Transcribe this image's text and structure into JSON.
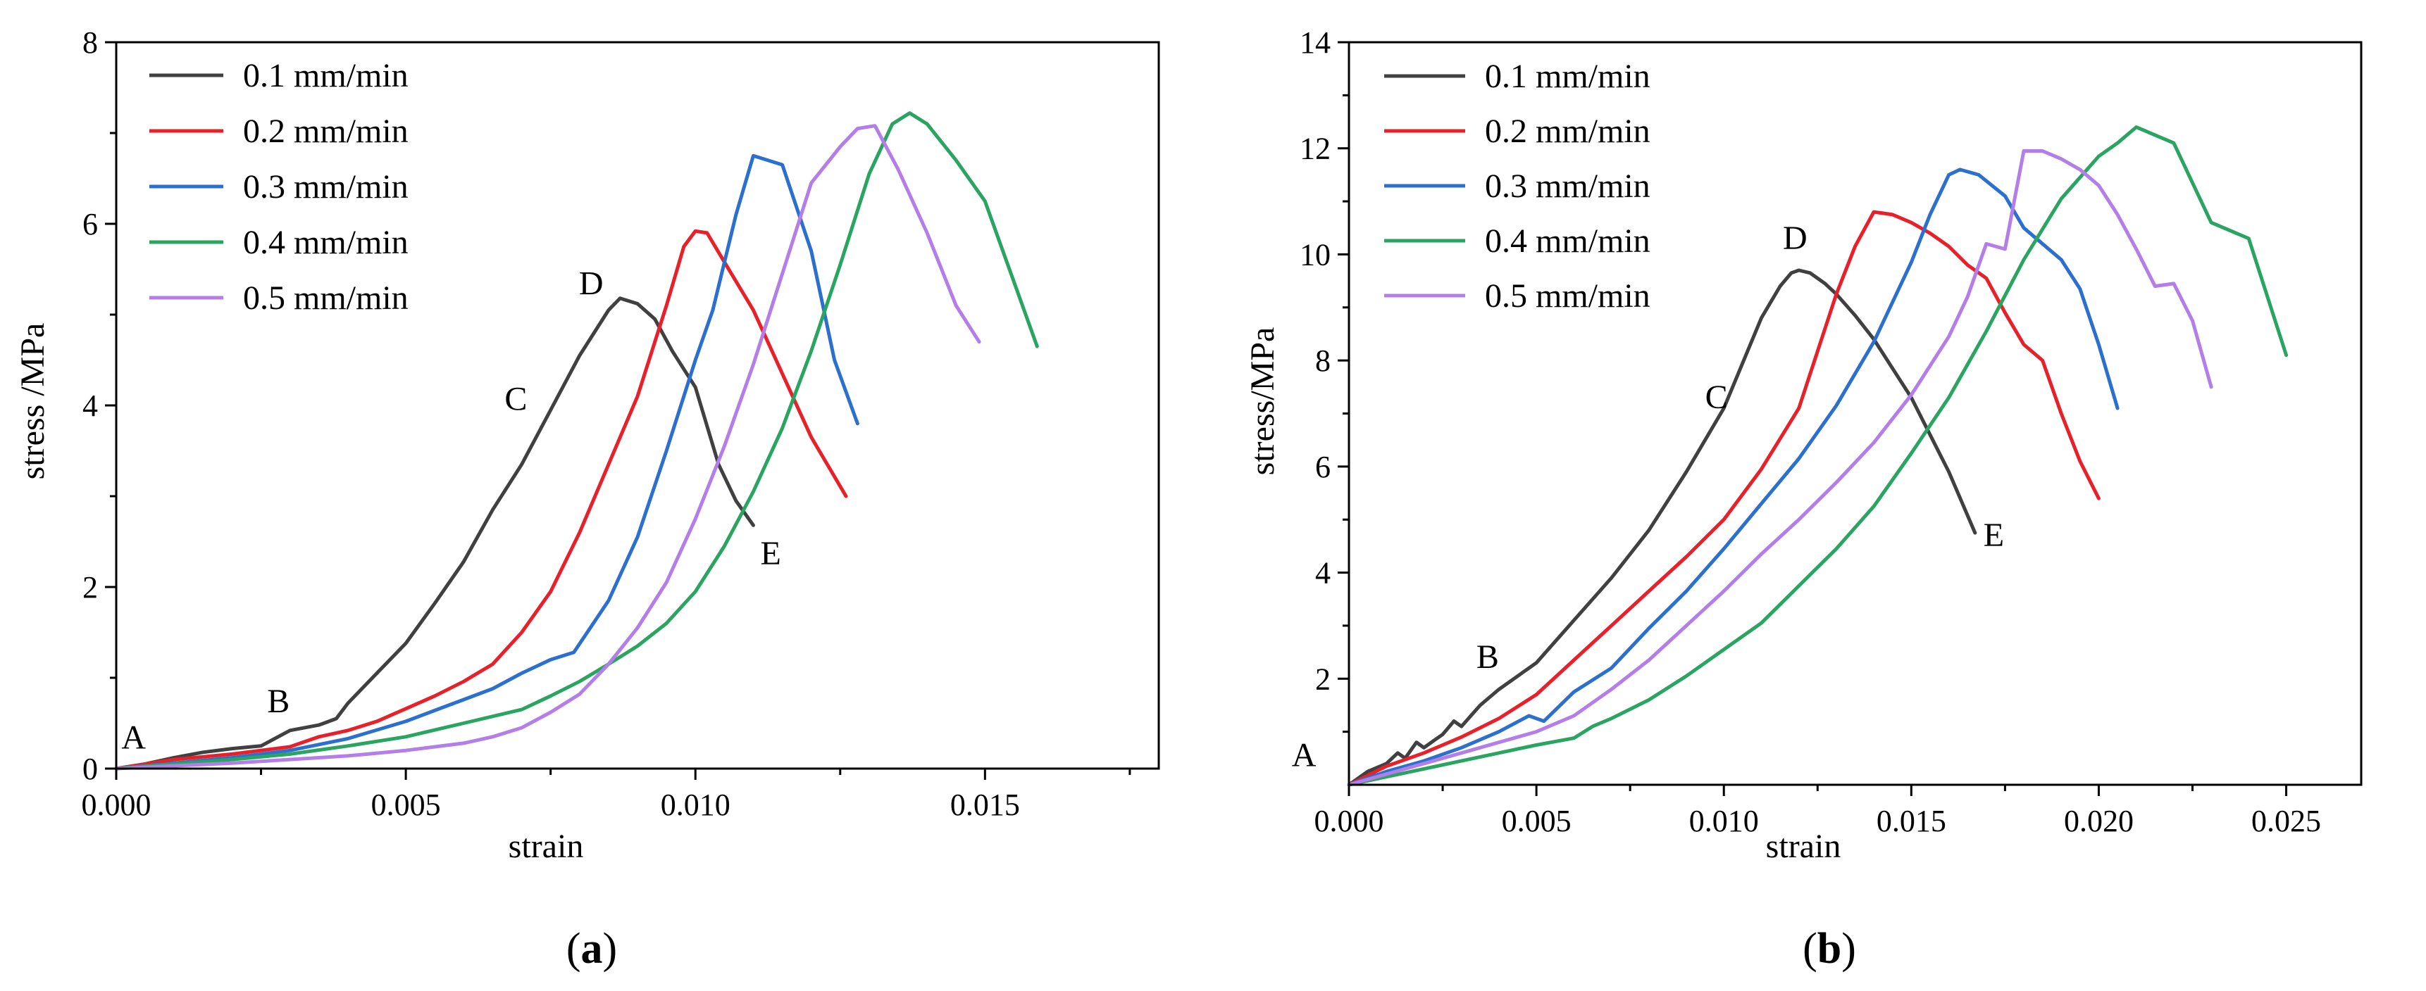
{
  "chart_data": [
    {
      "type": "line",
      "caption": "a",
      "xlabel": "strain",
      "ylabel": "stress /MPa",
      "xlim": [
        0,
        0.018
      ],
      "ylim": [
        0,
        8
      ],
      "xticks": [
        "0.000",
        "0.005",
        "0.010",
        "0.015"
      ],
      "xtick_values": [
        0,
        0.005,
        0.01,
        0.015
      ],
      "yticks": [
        "0",
        "2",
        "4",
        "6",
        "8"
      ],
      "ytick_values": [
        0,
        2,
        4,
        6,
        8
      ],
      "legend_position": "top-left",
      "series": [
        {
          "name": "0.1 mm/min",
          "color": "#404040",
          "x": [
            0,
            0.0005,
            0.001,
            0.0015,
            0.002,
            0.0025,
            0.003,
            0.0035,
            0.0038,
            0.004,
            0.0045,
            0.005,
            0.0055,
            0.006,
            0.0065,
            0.007,
            0.0075,
            0.008,
            0.0085,
            0.0087,
            0.009,
            0.0093,
            0.0096,
            0.01,
            0.0104,
            0.0107,
            0.011
          ],
          "y": [
            0,
            0.05,
            0.12,
            0.18,
            0.22,
            0.25,
            0.42,
            0.48,
            0.55,
            0.72,
            1.05,
            1.38,
            1.82,
            2.28,
            2.85,
            3.35,
            3.95,
            4.55,
            5.05,
            5.18,
            5.12,
            4.95,
            4.6,
            4.2,
            3.35,
            2.95,
            2.68
          ]
        },
        {
          "name": "0.2 mm/min",
          "color": "#e8202a",
          "x": [
            0,
            0.001,
            0.002,
            0.003,
            0.0035,
            0.004,
            0.0045,
            0.005,
            0.0055,
            0.006,
            0.0065,
            0.007,
            0.0075,
            0.008,
            0.0085,
            0.009,
            0.0095,
            0.0098,
            0.01,
            0.0102,
            0.0105,
            0.011,
            0.0115,
            0.012,
            0.0126
          ],
          "y": [
            0,
            0.1,
            0.16,
            0.24,
            0.35,
            0.42,
            0.52,
            0.66,
            0.8,
            0.96,
            1.15,
            1.5,
            1.95,
            2.6,
            3.35,
            4.1,
            5.1,
            5.75,
            5.92,
            5.9,
            5.58,
            5.05,
            4.35,
            3.65,
            3.0
          ]
        },
        {
          "name": "0.3 mm/min",
          "color": "#2b6fcf",
          "x": [
            0,
            0.001,
            0.002,
            0.003,
            0.004,
            0.005,
            0.0055,
            0.006,
            0.0065,
            0.007,
            0.0075,
            0.0079,
            0.0085,
            0.009,
            0.0095,
            0.01,
            0.0103,
            0.0107,
            0.011,
            0.0115,
            0.012,
            0.0124,
            0.0128
          ],
          "y": [
            0,
            0.06,
            0.12,
            0.2,
            0.33,
            0.52,
            0.64,
            0.76,
            0.88,
            1.05,
            1.2,
            1.28,
            1.85,
            2.55,
            3.5,
            4.5,
            5.05,
            6.1,
            6.75,
            6.65,
            5.7,
            4.5,
            3.8
          ]
        },
        {
          "name": "0.4 mm/min",
          "color": "#2aa461",
          "x": [
            0,
            0.001,
            0.002,
            0.003,
            0.004,
            0.005,
            0.006,
            0.007,
            0.0075,
            0.008,
            0.0085,
            0.009,
            0.0095,
            0.01,
            0.0105,
            0.011,
            0.0115,
            0.012,
            0.0125,
            0.013,
            0.0134,
            0.0137,
            0.014,
            0.0145,
            0.015,
            0.0159
          ],
          "y": [
            0,
            0.05,
            0.1,
            0.16,
            0.25,
            0.35,
            0.5,
            0.65,
            0.8,
            0.96,
            1.15,
            1.35,
            1.6,
            1.95,
            2.45,
            3.05,
            3.75,
            4.6,
            5.55,
            6.55,
            7.1,
            7.22,
            7.1,
            6.7,
            6.25,
            4.65
          ]
        },
        {
          "name": "0.5 mm/min",
          "color": "#b47ee8",
          "x": [
            0,
            0.001,
            0.002,
            0.003,
            0.004,
            0.005,
            0.006,
            0.0065,
            0.007,
            0.0075,
            0.008,
            0.0085,
            0.009,
            0.0095,
            0.01,
            0.0105,
            0.011,
            0.0115,
            0.012,
            0.0125,
            0.0128,
            0.0131,
            0.0135,
            0.014,
            0.0145,
            0.0149
          ],
          "y": [
            0,
            0.03,
            0.06,
            0.1,
            0.14,
            0.2,
            0.28,
            0.35,
            0.45,
            0.62,
            0.82,
            1.15,
            1.55,
            2.05,
            2.75,
            3.55,
            4.45,
            5.45,
            6.45,
            6.85,
            7.05,
            7.08,
            6.6,
            5.9,
            5.1,
            4.7
          ]
        }
      ],
      "annotations": [
        {
          "text": "A",
          "x": 0.0003,
          "y": 0.22
        },
        {
          "text": "B",
          "x": 0.0028,
          "y": 0.62
        },
        {
          "text": "C",
          "x": 0.0069,
          "y": 3.95
        },
        {
          "text": "D",
          "x": 0.0082,
          "y": 5.22
        },
        {
          "text": "E",
          "x": 0.0113,
          "y": 2.25
        }
      ]
    },
    {
      "type": "line",
      "caption": "b",
      "xlabel": "strain",
      "ylabel": "stress/MPa",
      "xlim": [
        0,
        0.027
      ],
      "ylim": [
        0,
        14
      ],
      "xticks": [
        "0.000",
        "0.005",
        "0.010",
        "0.015",
        "0.020",
        "0.025"
      ],
      "xtick_values": [
        0,
        0.005,
        0.01,
        0.015,
        0.02,
        0.025
      ],
      "yticks": [
        "2",
        "4",
        "6",
        "8",
        "10",
        "12",
        "14"
      ],
      "ytick_values": [
        2,
        4,
        6,
        8,
        10,
        12,
        14
      ],
      "legend_position": "top-left",
      "series": [
        {
          "name": "0.1 mm/min",
          "color": "#404040",
          "x": [
            0,
            0.0005,
            0.001,
            0.0013,
            0.0015,
            0.0018,
            0.002,
            0.0023,
            0.0025,
            0.0028,
            0.003,
            0.0035,
            0.004,
            0.005,
            0.006,
            0.007,
            0.008,
            0.009,
            0.01,
            0.011,
            0.0115,
            0.0118,
            0.012,
            0.0123,
            0.0127,
            0.013,
            0.0135,
            0.014,
            0.015,
            0.016,
            0.0167
          ],
          "y": [
            0,
            0.25,
            0.4,
            0.6,
            0.5,
            0.8,
            0.7,
            0.85,
            0.95,
            1.2,
            1.1,
            1.5,
            1.8,
            2.3,
            3.1,
            3.9,
            4.8,
            5.9,
            7.1,
            8.8,
            9.4,
            9.65,
            9.7,
            9.65,
            9.45,
            9.25,
            8.85,
            8.4,
            7.3,
            5.9,
            4.75
          ]
        },
        {
          "name": "0.2 mm/min",
          "color": "#e8202a",
          "x": [
            0,
            0.001,
            0.002,
            0.003,
            0.004,
            0.005,
            0.006,
            0.007,
            0.008,
            0.009,
            0.01,
            0.011,
            0.012,
            0.013,
            0.0135,
            0.014,
            0.0145,
            0.015,
            0.0155,
            0.016,
            0.0165,
            0.017,
            0.0175,
            0.018,
            0.0185,
            0.019,
            0.0195,
            0.02
          ],
          "y": [
            0,
            0.35,
            0.6,
            0.9,
            1.25,
            1.7,
            2.35,
            3.0,
            3.65,
            4.3,
            5.0,
            5.95,
            7.1,
            9.25,
            10.15,
            10.8,
            10.75,
            10.6,
            10.4,
            10.15,
            9.8,
            9.55,
            8.9,
            8.3,
            8.0,
            7.0,
            6.1,
            5.4
          ]
        },
        {
          "name": "0.3 mm/min",
          "color": "#2b6fcf",
          "x": [
            0,
            0.001,
            0.002,
            0.003,
            0.004,
            0.0048,
            0.0052,
            0.006,
            0.007,
            0.008,
            0.009,
            0.01,
            0.011,
            0.012,
            0.013,
            0.014,
            0.015,
            0.0155,
            0.016,
            0.0163,
            0.0168,
            0.0175,
            0.018,
            0.019,
            0.0195,
            0.02,
            0.0205
          ],
          "y": [
            0,
            0.25,
            0.45,
            0.7,
            1.0,
            1.3,
            1.2,
            1.75,
            2.2,
            2.95,
            3.65,
            4.45,
            5.3,
            6.15,
            7.15,
            8.35,
            9.85,
            10.75,
            11.5,
            11.6,
            11.5,
            11.1,
            10.5,
            9.9,
            9.35,
            8.3,
            7.1
          ]
        },
        {
          "name": "0.4 mm/min",
          "color": "#2aa461",
          "x": [
            0,
            0.001,
            0.002,
            0.003,
            0.004,
            0.005,
            0.006,
            0.0065,
            0.007,
            0.008,
            0.009,
            0.01,
            0.011,
            0.012,
            0.013,
            0.014,
            0.015,
            0.016,
            0.017,
            0.018,
            0.019,
            0.02,
            0.0205,
            0.021,
            0.022,
            0.023,
            0.024,
            0.025
          ],
          "y": [
            0,
            0.15,
            0.3,
            0.45,
            0.6,
            0.75,
            0.88,
            1.1,
            1.25,
            1.6,
            2.05,
            2.55,
            3.05,
            3.75,
            4.45,
            5.25,
            6.25,
            7.3,
            8.55,
            9.9,
            11.05,
            11.85,
            12.1,
            12.4,
            12.1,
            10.6,
            10.3,
            8.1
          ]
        },
        {
          "name": "0.5 mm/min",
          "color": "#b47ee8",
          "x": [
            0,
            0.001,
            0.002,
            0.003,
            0.004,
            0.005,
            0.006,
            0.007,
            0.008,
            0.009,
            0.01,
            0.011,
            0.012,
            0.013,
            0.014,
            0.015,
            0.016,
            0.0165,
            0.017,
            0.0175,
            0.018,
            0.0185,
            0.019,
            0.0195,
            0.02,
            0.0205,
            0.021,
            0.0215,
            0.022,
            0.0225,
            0.023
          ],
          "y": [
            0,
            0.2,
            0.4,
            0.6,
            0.8,
            1.0,
            1.3,
            1.8,
            2.35,
            3.0,
            3.65,
            4.35,
            5.0,
            5.7,
            6.45,
            7.35,
            8.45,
            9.2,
            10.2,
            10.1,
            11.95,
            11.95,
            11.8,
            11.6,
            11.3,
            10.75,
            10.1,
            9.4,
            9.45,
            8.75,
            7.5
          ]
        }
      ],
      "annotations": [
        {
          "text": "A",
          "x": -0.0012,
          "y": 0.35
        },
        {
          "text": "B",
          "x": 0.0037,
          "y": 2.2
        },
        {
          "text": "C",
          "x": 0.0098,
          "y": 7.1
        },
        {
          "text": "D",
          "x": 0.0119,
          "y": 10.1
        },
        {
          "text": "E",
          "x": 0.0172,
          "y": 4.5
        }
      ]
    }
  ]
}
